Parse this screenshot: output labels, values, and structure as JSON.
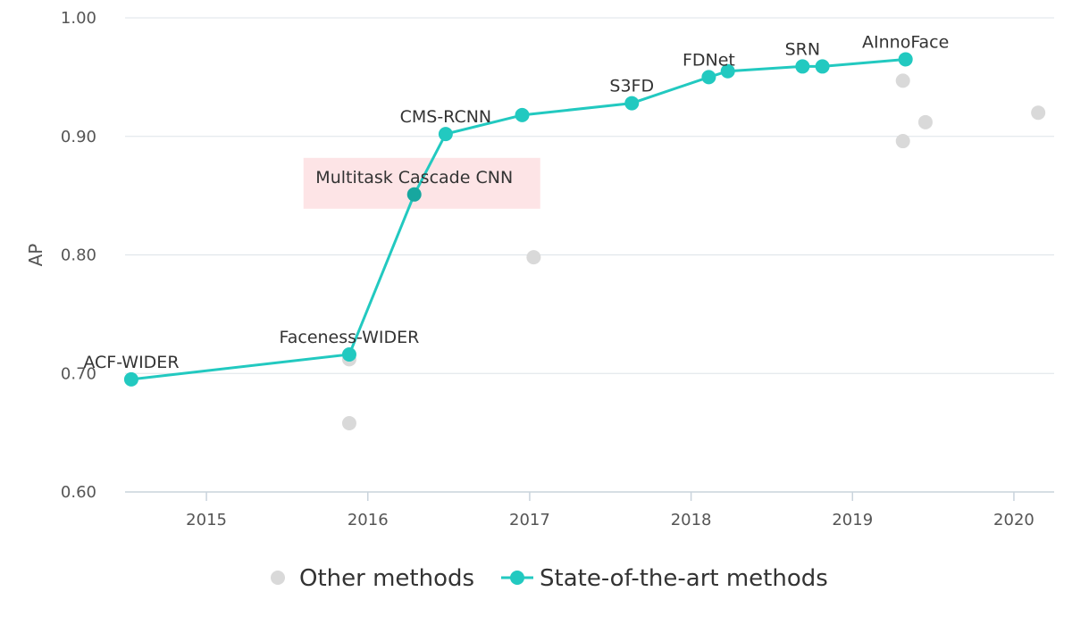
{
  "chart_data": {
    "type": "line",
    "title": "",
    "xlabel": "",
    "ylabel": "AP",
    "xlim": [
      "2014-07-01",
      "2020-04-01"
    ],
    "ylim": [
      0.6,
      1.0
    ],
    "x_ticks": [
      "2015",
      "2016",
      "2017",
      "2018",
      "2019",
      "2020"
    ],
    "y_ticks": [
      "0.60",
      "0.70",
      "0.80",
      "0.90",
      "1.00"
    ],
    "grid": true,
    "legend_position": "bottom",
    "highlighted_method": "Multitask Cascade CNN",
    "colors": {
      "sota": "#22c9c0",
      "sota_dark": "#17a79f",
      "other": "#d9d9d9",
      "highlight_box": "#fde4e6",
      "grid": "#dde3e8",
      "axis": "#c9d3dc"
    },
    "series": [
      {
        "name": "Other methods",
        "points": [
          {
            "x": "2015-11-20",
            "y": 0.712
          },
          {
            "x": "2015-11-20",
            "y": 0.658
          },
          {
            "x": "2017-01-10",
            "y": 0.798
          },
          {
            "x": "2019-04-25",
            "y": 0.947
          },
          {
            "x": "2019-04-25",
            "y": 0.896
          },
          {
            "x": "2019-06-15",
            "y": 0.912
          },
          {
            "x": "2020-02-25",
            "y": 0.92
          }
        ]
      },
      {
        "name": "State-of-the-art methods",
        "points": [
          {
            "x": "2014-07-15",
            "y": 0.695,
            "label": "ACF-WIDER"
          },
          {
            "x": "2015-11-20",
            "y": 0.716,
            "label": "Faceness-WIDER"
          },
          {
            "x": "2016-04-15",
            "y": 0.851,
            "label": "Multitask Cascade CNN"
          },
          {
            "x": "2016-06-25",
            "y": 0.902,
            "label": "CMS-RCNN"
          },
          {
            "x": "2016-12-15",
            "y": 0.918,
            "label": ""
          },
          {
            "x": "2017-08-20",
            "y": 0.928,
            "label": "S3FD"
          },
          {
            "x": "2018-02-10",
            "y": 0.95,
            "label": "FDNet"
          },
          {
            "x": "2018-03-25",
            "y": 0.955,
            "label": ""
          },
          {
            "x": "2018-09-10",
            "y": 0.959,
            "label": "SRN"
          },
          {
            "x": "2018-10-25",
            "y": 0.959,
            "label": ""
          },
          {
            "x": "2019-05-01",
            "y": 0.965,
            "label": "AInnoFace"
          }
        ]
      }
    ]
  },
  "legend": {
    "other_label": "Other methods",
    "sota_label": "State-of-the-art methods"
  }
}
